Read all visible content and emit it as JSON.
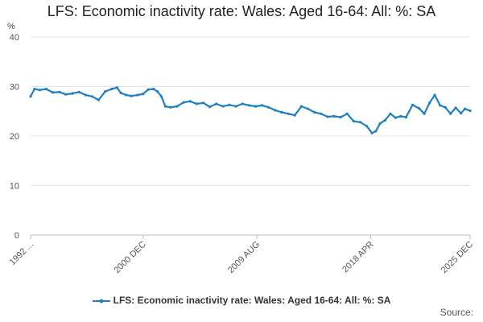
{
  "chart_data": {
    "type": "line",
    "title": "LFS: Economic inactivity rate: Wales: Aged 16-64: All: %: SA",
    "ylabel": "%",
    "xlabel": "",
    "ylim": [
      0,
      40
    ],
    "yticks": [
      0,
      10,
      20,
      30,
      40
    ],
    "xlim": [
      1992.3,
      2025.9
    ],
    "xticks": [
      {
        "label": "1992 ...",
        "x": 1992.3
      },
      {
        "label": "2000 DEC",
        "x": 2000.9
      },
      {
        "label": "2009 AUG",
        "x": 2009.6
      },
      {
        "label": "2018 APR",
        "x": 2018.3
      },
      {
        "label": "2025 DEC",
        "x": 2025.9
      }
    ],
    "grid": true,
    "legend_position": "bottom",
    "color": "#1f7fc0",
    "series": [
      {
        "name": "LFS: Economic inactivity rate: Wales: Aged 16-64: All: %: SA",
        "x": [
          1992.3,
          1992.6,
          1993.0,
          1993.5,
          1994.0,
          1994.5,
          1995.0,
          1995.5,
          1996.0,
          1996.5,
          1997.0,
          1997.5,
          1998.0,
          1998.5,
          1998.9,
          1999.2,
          1999.6,
          2000.0,
          2000.5,
          2000.9,
          2001.3,
          2001.7,
          2002.0,
          2002.3,
          2002.6,
          2003.0,
          2003.5,
          2004.0,
          2004.5,
          2005.0,
          2005.5,
          2006.0,
          2006.5,
          2007.0,
          2007.5,
          2008.0,
          2008.5,
          2009.0,
          2009.5,
          2010.0,
          2010.5,
          2011.0,
          2011.5,
          2012.0,
          2012.5,
          2013.0,
          2013.5,
          2014.0,
          2014.5,
          2015.0,
          2015.5,
          2016.0,
          2016.5,
          2017.0,
          2017.5,
          2018.0,
          2018.4,
          2018.7,
          2019.0,
          2019.4,
          2019.8,
          2020.2,
          2020.6,
          2021.0,
          2021.5,
          2022.0,
          2022.4,
          2022.8,
          2023.2,
          2023.6,
          2024.0,
          2024.4,
          2024.8,
          2025.2,
          2025.5,
          2025.9
        ],
        "values": [
          28.0,
          29.5,
          29.3,
          29.5,
          28.8,
          28.9,
          28.4,
          28.6,
          28.9,
          28.3,
          28.0,
          27.3,
          29.0,
          29.5,
          29.8,
          28.7,
          28.3,
          28.1,
          28.3,
          28.5,
          29.4,
          29.5,
          29.0,
          28.0,
          26.0,
          25.8,
          26.0,
          26.8,
          27.0,
          26.5,
          26.7,
          25.9,
          26.5,
          26.0,
          26.3,
          26.0,
          26.5,
          26.2,
          26.0,
          26.2,
          25.8,
          25.2,
          24.8,
          24.5,
          24.2,
          26.0,
          25.5,
          24.8,
          24.5,
          23.9,
          24.0,
          23.8,
          24.5,
          23.0,
          22.8,
          22.0,
          20.6,
          21.0,
          22.5,
          23.2,
          24.5,
          23.7,
          24.0,
          23.8,
          26.3,
          25.6,
          24.5,
          26.7,
          28.3,
          26.2,
          25.8,
          24.5,
          25.7,
          24.6,
          25.5,
          25.1
        ]
      }
    ]
  },
  "legend": {
    "label": "LFS: Economic inactivity rate: Wales: Aged 16-64: All: %: SA"
  },
  "source": {
    "label": "Source:"
  }
}
